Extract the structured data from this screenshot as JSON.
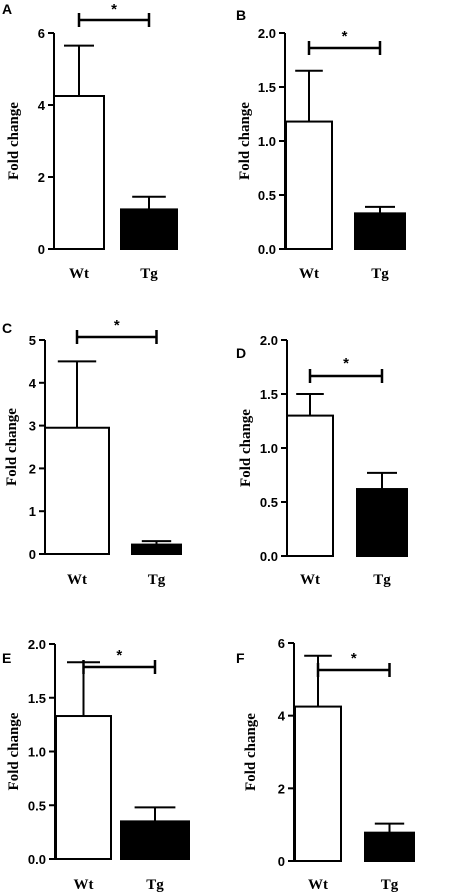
{
  "chart_data": [
    {
      "type": "bar",
      "panel": "A",
      "categories": [
        "Wt",
        "Tg"
      ],
      "values": [
        4.25,
        1.1
      ],
      "errors": [
        1.4,
        0.35
      ],
      "ylabel": "Fold change",
      "ylim": [
        0,
        6
      ],
      "yticks": [
        "0",
        "2",
        "4",
        "6"
      ],
      "yticks_values": [
        0,
        2,
        4,
        6
      ],
      "significance": "*",
      "bar_colors": [
        "#ffffff",
        "#000000"
      ]
    },
    {
      "type": "bar",
      "panel": "B",
      "categories": [
        "Wt",
        "Tg"
      ],
      "values": [
        1.18,
        0.33
      ],
      "errors": [
        0.47,
        0.06
      ],
      "ylabel": "Fold change",
      "ylim": [
        0,
        2.0
      ],
      "yticks": [
        "0.0",
        "0.5",
        "1.0",
        "1.5",
        "2.0"
      ],
      "yticks_values": [
        0,
        0.5,
        1.0,
        1.5,
        2.0
      ],
      "significance": "*",
      "bar_colors": [
        "#ffffff",
        "#000000"
      ]
    },
    {
      "type": "bar",
      "panel": "C",
      "categories": [
        "Wt",
        "Tg"
      ],
      "values": [
        2.95,
        0.22
      ],
      "errors": [
        1.55,
        0.08
      ],
      "ylabel": "Fold change",
      "ylim": [
        0,
        5
      ],
      "yticks": [
        "0",
        "1",
        "2",
        "3",
        "4",
        "5"
      ],
      "yticks_values": [
        0,
        1,
        2,
        3,
        4,
        5
      ],
      "significance": "*",
      "bar_colors": [
        "#ffffff",
        "#000000"
      ]
    },
    {
      "type": "bar",
      "panel": "D",
      "categories": [
        "Wt",
        "Tg"
      ],
      "values": [
        1.3,
        0.62
      ],
      "errors": [
        0.2,
        0.15
      ],
      "ylabel": "Fold change",
      "ylim": [
        0,
        2.0
      ],
      "yticks": [
        "0.0",
        "0.5",
        "1.0",
        "1.5",
        "2.0"
      ],
      "yticks_values": [
        0,
        0.5,
        1.0,
        1.5,
        2.0
      ],
      "significance": "*",
      "bar_colors": [
        "#ffffff",
        "#000000"
      ]
    },
    {
      "type": "bar",
      "panel": "E",
      "categories": [
        "Wt",
        "Tg"
      ],
      "values": [
        1.33,
        0.35
      ],
      "errors": [
        0.5,
        0.13
      ],
      "ylabel": "Fold change",
      "ylim": [
        0,
        2.0
      ],
      "yticks": [
        "0.0",
        "0.5",
        "1.0",
        "1.5",
        "2.0"
      ],
      "yticks_values": [
        0,
        0.5,
        1.0,
        1.5,
        2.0
      ],
      "significance": "*",
      "bar_colors": [
        "#ffffff",
        "#000000"
      ]
    },
    {
      "type": "bar",
      "panel": "F",
      "categories": [
        "Wt",
        "Tg"
      ],
      "values": [
        4.25,
        0.78
      ],
      "errors": [
        1.4,
        0.25
      ],
      "ylabel": "Fold change",
      "ylim": [
        0,
        6
      ],
      "yticks": [
        "0",
        "2",
        "4",
        "6"
      ],
      "yticks_values": [
        0,
        2,
        4,
        6
      ],
      "significance": "*",
      "bar_colors": [
        "#ffffff",
        "#000000"
      ]
    }
  ]
}
